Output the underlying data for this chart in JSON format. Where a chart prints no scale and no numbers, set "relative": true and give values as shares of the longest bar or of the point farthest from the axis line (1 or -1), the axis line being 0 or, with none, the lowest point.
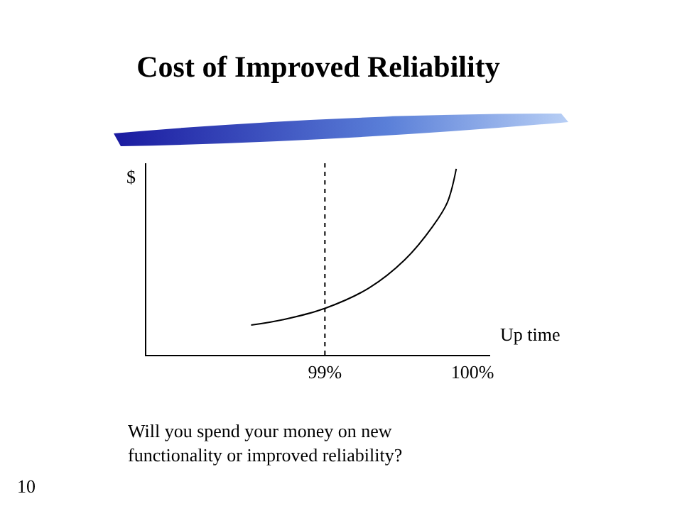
{
  "chart_data": {
    "type": "line",
    "title": "Cost of Improved Reliability",
    "xlabel": "Up time",
    "ylabel": "$",
    "relative": true,
    "x": [
      98.5,
      98.72,
      99.0,
      99.3,
      99.54,
      99.73,
      99.83,
      99.89
    ],
    "series": [
      {
        "color": "#000000",
        "values": [
          0.16,
          0.19,
          0.25,
          0.36,
          0.51,
          0.69,
          0.82,
          1.0
        ]
      }
    ],
    "xlim": [
      97.79,
      100.12
    ],
    "xticks": [
      {
        "value": 99,
        "label": "99%"
      },
      {
        "value": 100,
        "label": "100%"
      }
    ],
    "ref_lines": [
      {
        "axis": "x",
        "value": 99,
        "color": "#000000",
        "line_style": "dotted"
      }
    ],
    "annotations": [
      "Will you spend your money on new\nfunctionality or improved reliability?",
      "10"
    ],
    "grid": false,
    "marker": "none",
    "line_style": "solid"
  }
}
